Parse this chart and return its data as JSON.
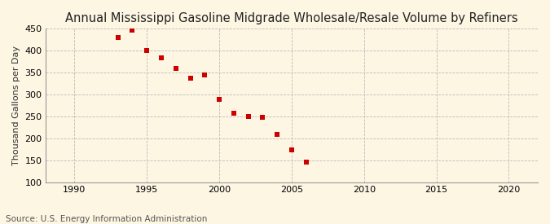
{
  "title": "Annual Mississippi Gasoline Midgrade Wholesale/Resale Volume by Refiners",
  "ylabel": "Thousand Gallons per Day",
  "source": "Source: U.S. Energy Information Administration",
  "background_color": "#fdf6e3",
  "years": [
    1993,
    1994,
    1995,
    1996,
    1997,
    1998,
    1999,
    2000,
    2001,
    2002,
    2003,
    2004,
    2005,
    2006
  ],
  "values": [
    430,
    447,
    401,
    383,
    360,
    338,
    344,
    289,
    258,
    251,
    248,
    210,
    174,
    147
  ],
  "marker_color": "#cc0000",
  "marker": "s",
  "marker_size": 4,
  "xlim": [
    1988,
    2022
  ],
  "ylim": [
    100,
    450
  ],
  "xticks": [
    1990,
    1995,
    2000,
    2005,
    2010,
    2015,
    2020
  ],
  "yticks": [
    100,
    150,
    200,
    250,
    300,
    350,
    400,
    450
  ],
  "grid_color": "#bbbbbb",
  "grid_linestyle": "--",
  "title_fontsize": 10.5,
  "label_fontsize": 8,
  "tick_fontsize": 8,
  "source_fontsize": 7.5
}
